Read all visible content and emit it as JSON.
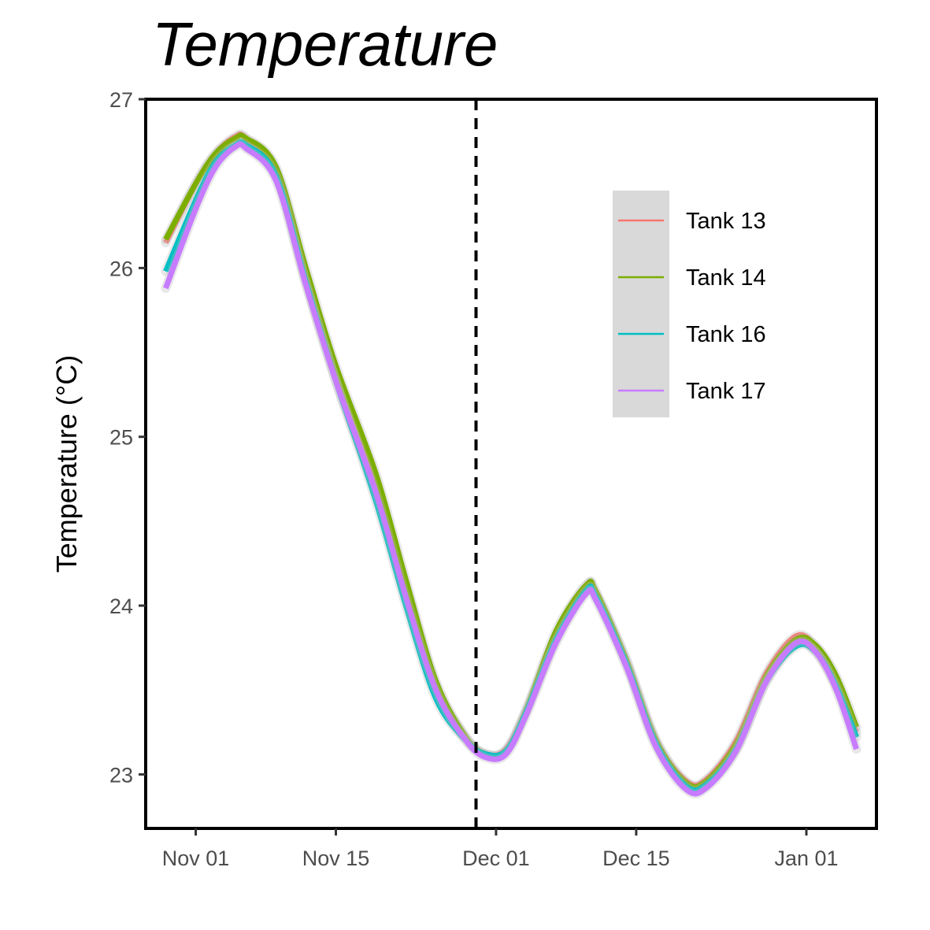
{
  "chart_data": {
    "type": "line",
    "title": "Temperature",
    "xlabel": "",
    "ylabel": "Temperature (°C)",
    "xlim": [
      "2025-10-27",
      "2026-01-08"
    ],
    "ylim": [
      22.68,
      27.0
    ],
    "x_ticks": [
      {
        "date": "2025-11-01",
        "label": "Nov 01"
      },
      {
        "date": "2025-11-15",
        "label": "Nov 15"
      },
      {
        "date": "2025-12-01",
        "label": "Dec 01"
      },
      {
        "date": "2025-12-15",
        "label": "Dec 15"
      },
      {
        "date": "2026-01-01",
        "label": "Jan 01"
      }
    ],
    "y_ticks": [
      {
        "value": 23,
        "label": "23"
      },
      {
        "value": 24,
        "label": "24"
      },
      {
        "value": 25,
        "label": "25"
      },
      {
        "value": 26,
        "label": "26"
      },
      {
        "value": 27,
        "label": "27"
      }
    ],
    "vline": {
      "date": "2025-11-29",
      "style": "dashed",
      "color": "#000000"
    },
    "grid": false,
    "legend_position": "top-right",
    "series": [
      {
        "name": "Tank 13",
        "color": "#F8766D",
        "points": [
          [
            "2025-10-29",
            26.15
          ],
          [
            "2025-11-01",
            26.5
          ],
          [
            "2025-11-03",
            26.68
          ],
          [
            "2025-11-05",
            26.78
          ],
          [
            "2025-11-06",
            26.77
          ],
          [
            "2025-11-09",
            26.58
          ],
          [
            "2025-11-12",
            25.95
          ],
          [
            "2025-11-15",
            25.38
          ],
          [
            "2025-11-19",
            24.73
          ],
          [
            "2025-11-22",
            24.12
          ],
          [
            "2025-11-25",
            23.53
          ],
          [
            "2025-11-28",
            23.22
          ],
          [
            "2025-11-30",
            23.12
          ],
          [
            "2025-12-02",
            23.15
          ],
          [
            "2025-12-04",
            23.38
          ],
          [
            "2025-12-07",
            23.82
          ],
          [
            "2025-12-10",
            24.12
          ],
          [
            "2025-12-11",
            24.07
          ],
          [
            "2025-12-14",
            23.68
          ],
          [
            "2025-12-17",
            23.2
          ],
          [
            "2025-12-20",
            22.96
          ],
          [
            "2025-12-22",
            22.97
          ],
          [
            "2025-12-25",
            23.2
          ],
          [
            "2025-12-28",
            23.6
          ],
          [
            "2025-12-31",
            23.82
          ],
          [
            "2026-01-02",
            23.75
          ],
          [
            "2026-01-04",
            23.55
          ],
          [
            "2026-01-06",
            23.25
          ]
        ]
      },
      {
        "name": "Tank 14",
        "color": "#7CAE00",
        "points": [
          [
            "2025-10-29",
            26.17
          ],
          [
            "2025-11-01",
            26.5
          ],
          [
            "2025-11-03",
            26.68
          ],
          [
            "2025-11-05",
            26.77
          ],
          [
            "2025-11-06",
            26.77
          ],
          [
            "2025-11-09",
            26.6
          ],
          [
            "2025-11-12",
            26.0
          ],
          [
            "2025-11-15",
            25.42
          ],
          [
            "2025-11-19",
            24.78
          ],
          [
            "2025-11-22",
            24.15
          ],
          [
            "2025-11-25",
            23.55
          ],
          [
            "2025-11-28",
            23.22
          ],
          [
            "2025-11-30",
            23.12
          ],
          [
            "2025-12-02",
            23.14
          ],
          [
            "2025-12-04",
            23.38
          ],
          [
            "2025-12-07",
            23.85
          ],
          [
            "2025-12-10",
            24.12
          ],
          [
            "2025-12-11",
            24.08
          ],
          [
            "2025-12-14",
            23.68
          ],
          [
            "2025-12-17",
            23.2
          ],
          [
            "2025-12-20",
            22.95
          ],
          [
            "2025-12-22",
            22.96
          ],
          [
            "2025-12-25",
            23.18
          ],
          [
            "2025-12-28",
            23.58
          ],
          [
            "2025-12-31",
            23.8
          ],
          [
            "2026-01-02",
            23.76
          ],
          [
            "2026-01-04",
            23.58
          ],
          [
            "2026-01-06",
            23.28
          ]
        ]
      },
      {
        "name": "Tank 16",
        "color": "#00BFC4",
        "points": [
          [
            "2025-10-29",
            25.98
          ],
          [
            "2025-11-01",
            26.4
          ],
          [
            "2025-11-03",
            26.63
          ],
          [
            "2025-11-05",
            26.73
          ],
          [
            "2025-11-06",
            26.73
          ],
          [
            "2025-11-09",
            26.55
          ],
          [
            "2025-11-12",
            25.92
          ],
          [
            "2025-11-15",
            25.33
          ],
          [
            "2025-11-19",
            24.62
          ],
          [
            "2025-11-22",
            24.0
          ],
          [
            "2025-11-25",
            23.45
          ],
          [
            "2025-11-28",
            23.2
          ],
          [
            "2025-11-30",
            23.12
          ],
          [
            "2025-12-02",
            23.14
          ],
          [
            "2025-12-04",
            23.37
          ],
          [
            "2025-12-07",
            23.8
          ],
          [
            "2025-12-10",
            24.09
          ],
          [
            "2025-12-11",
            24.05
          ],
          [
            "2025-12-14",
            23.66
          ],
          [
            "2025-12-17",
            23.18
          ],
          [
            "2025-12-20",
            22.93
          ],
          [
            "2025-12-22",
            22.94
          ],
          [
            "2025-12-25",
            23.15
          ],
          [
            "2025-12-28",
            23.55
          ],
          [
            "2025-12-31",
            23.76
          ],
          [
            "2026-01-02",
            23.72
          ],
          [
            "2026-01-04",
            23.52
          ],
          [
            "2026-01-06",
            23.22
          ]
        ]
      },
      {
        "name": "Tank 17",
        "color": "#C77CFF",
        "points": [
          [
            "2025-10-29",
            25.88
          ],
          [
            "2025-11-01",
            26.35
          ],
          [
            "2025-11-03",
            26.6
          ],
          [
            "2025-11-05",
            26.72
          ],
          [
            "2025-11-06",
            26.71
          ],
          [
            "2025-11-09",
            26.52
          ],
          [
            "2025-11-12",
            25.9
          ],
          [
            "2025-11-15",
            25.33
          ],
          [
            "2025-11-19",
            24.67
          ],
          [
            "2025-11-22",
            24.05
          ],
          [
            "2025-11-25",
            23.5
          ],
          [
            "2025-11-28",
            23.2
          ],
          [
            "2025-11-30",
            23.1
          ],
          [
            "2025-12-02",
            23.12
          ],
          [
            "2025-12-04",
            23.35
          ],
          [
            "2025-12-07",
            23.78
          ],
          [
            "2025-12-10",
            24.07
          ],
          [
            "2025-12-11",
            24.03
          ],
          [
            "2025-12-14",
            23.64
          ],
          [
            "2025-12-17",
            23.16
          ],
          [
            "2025-12-20",
            22.91
          ],
          [
            "2025-12-22",
            22.92
          ],
          [
            "2025-12-25",
            23.14
          ],
          [
            "2025-12-28",
            23.55
          ],
          [
            "2025-12-31",
            23.78
          ],
          [
            "2026-01-02",
            23.72
          ],
          [
            "2026-01-04",
            23.5
          ],
          [
            "2026-01-06",
            23.15
          ]
        ]
      }
    ]
  }
}
